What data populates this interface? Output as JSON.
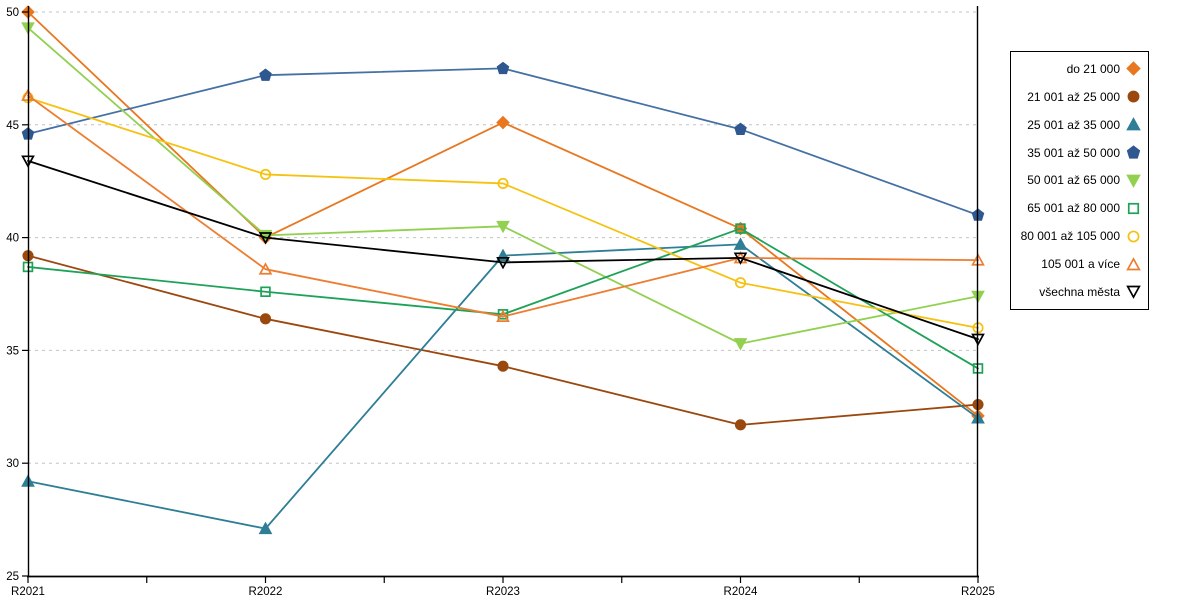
{
  "chart_data": {
    "type": "line",
    "title": "",
    "xlabel": "",
    "ylabel": "",
    "x_categories": [
      "R2021",
      "R2022",
      "R2023",
      "R2024",
      "R2025"
    ],
    "y_axis": {
      "min": 25,
      "max": 50,
      "step": 5,
      "ticks": [
        "25",
        "30",
        "35",
        "40",
        "45",
        "50"
      ]
    },
    "grid": {
      "horizontal": "dashed",
      "color": "#C3C3C3"
    },
    "legend_position": "right",
    "series": [
      {
        "name": "do 21 000",
        "marker": "diamond",
        "fill": "solid",
        "line_color": "#E8771F",
        "marker_color": "#E8771F",
        "values": [
          50.0,
          40.0,
          45.1,
          40.4,
          32.1
        ]
      },
      {
        "name": "21 001 až 25 000",
        "marker": "circle",
        "fill": "solid",
        "line_color": "#9A480D",
        "marker_color": "#9A480D",
        "values": [
          39.2,
          36.4,
          34.3,
          31.7,
          32.6
        ]
      },
      {
        "name": "25 001 až 35 000",
        "marker": "triangle-up",
        "fill": "solid",
        "line_color": "#2E7E96",
        "marker_color": "#2E7E96",
        "values": [
          29.2,
          27.1,
          39.2,
          39.7,
          32.0
        ]
      },
      {
        "name": "35 001 až 50 000",
        "marker": "pentagon",
        "fill": "solid",
        "line_color": "#4470A4",
        "marker_color": "#2F5891",
        "values": [
          44.6,
          47.2,
          47.5,
          44.8,
          41.0
        ]
      },
      {
        "name": "50 001 až 65 000",
        "marker": "triangle-down",
        "fill": "solid",
        "line_color": "#92D050",
        "marker_color": "#92D050",
        "values": [
          49.3,
          40.1,
          40.5,
          35.3,
          37.4
        ]
      },
      {
        "name": "65 001 až 80 000",
        "marker": "square",
        "fill": "open",
        "line_color": "#1DA258",
        "marker_color": "#1DA258",
        "values": [
          38.7,
          37.6,
          36.6,
          40.4,
          34.2
        ]
      },
      {
        "name": "80 001 až 105 000",
        "marker": "circle",
        "fill": "open",
        "line_color": "#F5C211",
        "marker_color": "#F5C211",
        "values": [
          46.2,
          42.8,
          42.4,
          38.0,
          36.0
        ]
      },
      {
        "name": "105 001 a více",
        "marker": "triangle-up",
        "fill": "open",
        "line_color": "#ED7D31",
        "marker_color": "#ED7D31",
        "values": [
          46.3,
          38.6,
          36.5,
          39.1,
          39.0
        ]
      },
      {
        "name": "všechna města",
        "marker": "triangle-down",
        "fill": "open",
        "line_color": "#000000",
        "marker_color": "#000000",
        "values": [
          43.4,
          40.0,
          38.9,
          39.1,
          35.5
        ]
      }
    ]
  },
  "colors": {
    "axis": "#000000",
    "background": "#FFFFFF"
  }
}
